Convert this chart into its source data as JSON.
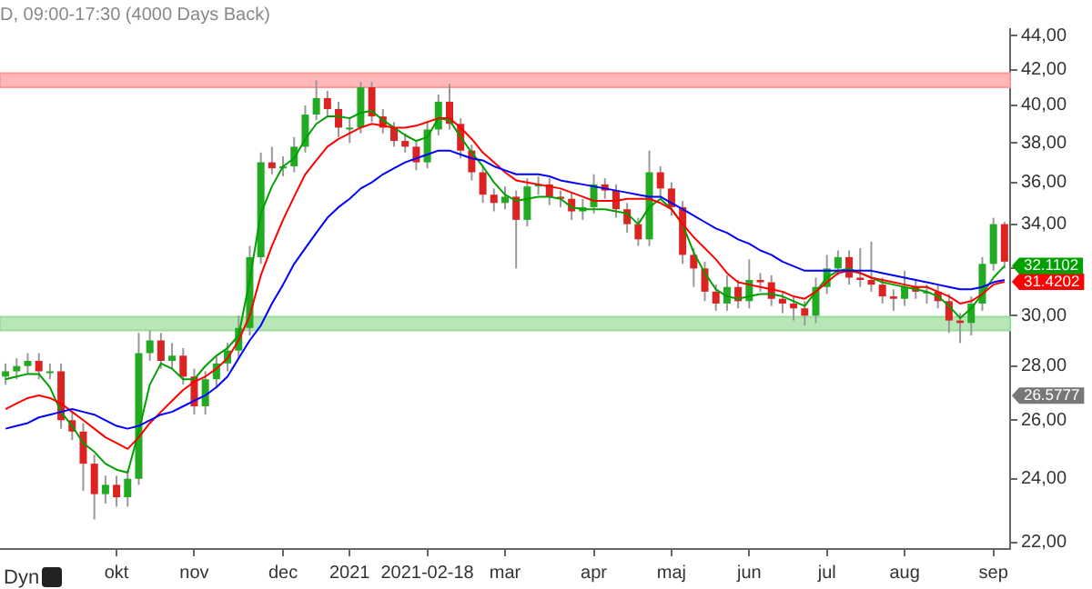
{
  "chart_data": {
    "type": "candlestick",
    "title": "D, 09:00-17:30 (4000 Days Back)",
    "categories": [
      null,
      null,
      null,
      null,
      null,
      null,
      null,
      null,
      null,
      null,
      "okt",
      null,
      null,
      null,
      null,
      null,
      null,
      "nov",
      null,
      null,
      null,
      null,
      null,
      null,
      null,
      "dec",
      null,
      null,
      null,
      null,
      null,
      "2021",
      null,
      null,
      null,
      null,
      null,
      null,
      "2021-02-18",
      null,
      null,
      null,
      null,
      null,
      null,
      "mar",
      null,
      null,
      null,
      null,
      null,
      null,
      null,
      "apr",
      null,
      null,
      null,
      null,
      null,
      null,
      "maj",
      null,
      null,
      null,
      null,
      null,
      null,
      "jun",
      null,
      null,
      null,
      null,
      null,
      null,
      "jul",
      null,
      null,
      null,
      null,
      null,
      null,
      "aug",
      null,
      null,
      null,
      null,
      null,
      null,
      null,
      "sep",
      null
    ],
    "ohlc": [
      [
        27.6,
        28.1,
        27.3,
        27.8
      ],
      [
        27.8,
        28.3,
        27.5,
        28
      ],
      [
        28,
        28.5,
        27.7,
        28.2
      ],
      [
        28.2,
        28.5,
        27.5,
        27.8
      ],
      [
        27.8,
        28.1,
        27.5,
        27.8
      ],
      [
        27.8,
        28.1,
        25.7,
        26
      ],
      [
        26,
        26.3,
        25.3,
        25.6
      ],
      [
        25.6,
        25.9,
        23.6,
        24.5
      ],
      [
        24.5,
        24.8,
        22.7,
        23.5
      ],
      [
        23.5,
        24.1,
        23.2,
        23.8
      ],
      [
        23.8,
        24.1,
        23.1,
        23.4
      ],
      [
        23.4,
        24.3,
        23.1,
        24
      ],
      [
        24,
        29.3,
        23.8,
        28.5
      ],
      [
        28.5,
        29.4,
        28.2,
        29
      ],
      [
        29,
        29.3,
        27.9,
        28.2
      ],
      [
        28.2,
        28.9,
        27.9,
        28.4
      ],
      [
        28.4,
        28.7,
        27.3,
        27.6
      ],
      [
        27.6,
        27.9,
        26.2,
        26.5
      ],
      [
        26.5,
        27.8,
        26.2,
        27.5
      ],
      [
        27.5,
        28.4,
        27.2,
        28.1
      ],
      [
        28.1,
        28.9,
        27.8,
        28.6
      ],
      [
        28.6,
        30,
        28.3,
        29.5
      ],
      [
        29.5,
        33,
        29.2,
        32.5
      ],
      [
        32.5,
        37.5,
        32.2,
        37
      ],
      [
        37,
        37.8,
        36.4,
        36.7
      ],
      [
        36.7,
        37.3,
        36.3,
        36.8
      ],
      [
        36.8,
        38.3,
        36.5,
        37.8
      ],
      [
        37.8,
        40,
        37.5,
        39.5
      ],
      [
        39.5,
        41.4,
        39.2,
        40.4
      ],
      [
        40.4,
        40.8,
        39.4,
        39.8
      ],
      [
        39.8,
        40.2,
        38.3,
        38.8
      ],
      [
        38.8,
        39.3,
        38,
        38.8
      ],
      [
        38.8,
        41.3,
        38.5,
        41
      ],
      [
        41,
        41.3,
        39.1,
        39.4
      ],
      [
        39.4,
        39.8,
        38.5,
        38.8
      ],
      [
        38.8,
        39.1,
        37.8,
        38.1
      ],
      [
        38.1,
        38.5,
        37.5,
        37.8
      ],
      [
        37.8,
        38.1,
        36.6,
        37
      ],
      [
        37,
        39.1,
        36.7,
        38.7
      ],
      [
        38.7,
        40.6,
        38.4,
        40.2
      ],
      [
        40.2,
        41.2,
        38.7,
        39
      ],
      [
        39,
        39.3,
        37.2,
        37.6
      ],
      [
        37.6,
        37.9,
        36.1,
        36.5
      ],
      [
        36.5,
        36.8,
        35,
        35.4
      ],
      [
        35.4,
        35.7,
        34.6,
        35
      ],
      [
        35,
        35.8,
        34.7,
        35.3
      ],
      [
        35.3,
        35.6,
        32,
        34.2
      ],
      [
        34.2,
        36.2,
        33.9,
        35.8
      ],
      [
        35.8,
        36.3,
        35.4,
        35.9
      ],
      [
        35.9,
        36.2,
        34.9,
        35.3
      ],
      [
        35.3,
        35.6,
        34.8,
        35.2
      ],
      [
        35.2,
        35.5,
        34.2,
        34.6
      ],
      [
        34.6,
        35.2,
        34.2,
        34.8
      ],
      [
        34.8,
        36.4,
        34.5,
        35.9
      ],
      [
        35.9,
        36.2,
        35.2,
        35.6
      ],
      [
        35.6,
        35.9,
        34.3,
        34.7
      ],
      [
        34.7,
        35,
        33.6,
        34
      ],
      [
        34,
        34.3,
        33,
        33.3
      ],
      [
        33.3,
        37.6,
        33,
        36.5
      ],
      [
        36.5,
        36.8,
        35.3,
        35.7
      ],
      [
        35.7,
        36,
        34.4,
        34.8
      ],
      [
        34.8,
        35.1,
        32.2,
        32.6
      ],
      [
        32.6,
        32.9,
        31.2,
        32
      ],
      [
        32,
        32.3,
        30.6,
        31
      ],
      [
        31,
        31.3,
        30.2,
        30.5
      ],
      [
        30.5,
        31.7,
        30.2,
        31.2
      ],
      [
        31.2,
        31.5,
        30.3,
        30.6
      ],
      [
        30.6,
        32.4,
        30.3,
        31.5
      ],
      [
        31.5,
        31.8,
        31,
        31.4
      ],
      [
        31.4,
        31.7,
        30.4,
        30.7
      ],
      [
        30.7,
        31,
        30.1,
        30.5
      ],
      [
        30.5,
        30.8,
        29.8,
        30.3
      ],
      [
        30.3,
        30.6,
        29.6,
        30
      ],
      [
        30,
        31.6,
        29.7,
        31.2
      ],
      [
        31.2,
        32.6,
        30.9,
        32
      ],
      [
        32,
        32.8,
        31.7,
        32.5
      ],
      [
        32.5,
        32.8,
        31.3,
        31.6
      ],
      [
        31.6,
        32.9,
        31.2,
        31.5
      ],
      [
        31.5,
        33.2,
        31,
        31.3
      ],
      [
        31.3,
        31.6,
        30.5,
        30.8
      ],
      [
        30.8,
        31.1,
        30.2,
        30.7
      ],
      [
        30.7,
        31.9,
        30.4,
        31.2
      ],
      [
        31.2,
        31.5,
        30.7,
        31
      ],
      [
        31,
        31.3,
        30.5,
        31
      ],
      [
        31,
        31.3,
        30.3,
        30.6
      ],
      [
        30.6,
        30.9,
        29.3,
        29.8
      ],
      [
        29.8,
        30.1,
        28.9,
        29.7
      ],
      [
        29.7,
        30.8,
        29.2,
        30.5
      ],
      [
        30.5,
        32.5,
        30.2,
        32.2
      ],
      [
        32.2,
        34.3,
        31.9,
        34
      ],
      [
        34,
        34.1,
        32,
        32.3
      ]
    ],
    "series": [
      {
        "type": "line",
        "color": "#0000ff",
        "values": [
          25.7,
          25.8,
          25.9,
          26.1,
          26.2,
          26.3,
          26.4,
          26.3,
          26.2,
          26.0,
          25.8,
          25.7,
          25.8,
          26.0,
          26.2,
          26.3,
          26.5,
          26.7,
          26.9,
          27.2,
          27.6,
          28.3,
          29.0,
          29.6,
          30.5,
          31.3,
          32.2,
          32.9,
          33.6,
          34.3,
          34.8,
          35.2,
          35.7,
          36.0,
          36.4,
          36.7,
          37.0,
          37.2,
          37.4,
          37.6,
          37.6,
          37.4,
          37.2,
          37.1,
          36.8,
          36.6,
          36.4,
          36.4,
          36.4,
          36.3,
          36.1,
          36.0,
          35.9,
          35.8,
          35.7,
          35.6,
          35.5,
          35.4,
          35.3,
          35.3,
          35.0,
          34.7,
          34.4,
          34.1,
          33.8,
          33.6,
          33.3,
          33.1,
          32.8,
          32.6,
          32.3,
          32.1,
          31.9,
          31.9,
          31.9,
          31.9,
          31.9,
          31.9,
          31.9,
          31.8,
          31.7,
          31.6,
          31.5,
          31.4,
          31.3,
          31.2,
          31.1,
          31.1,
          31.2,
          31.4,
          31.5
        ]
      },
      {
        "type": "line",
        "color": "#ff0000",
        "values": [
          26.4,
          26.6,
          26.8,
          26.9,
          26.8,
          26.6,
          26.3,
          26.0,
          25.7,
          25.4,
          25.2,
          25.0,
          25.4,
          25.9,
          26.3,
          26.7,
          27.1,
          27.4,
          27.6,
          27.9,
          28.3,
          29.0,
          30.0,
          31.7,
          33.0,
          34.2,
          35.3,
          36.4,
          37.1,
          37.8,
          38.2,
          38.5,
          38.8,
          39.0,
          38.9,
          38.8,
          38.8,
          38.9,
          39.1,
          39.3,
          39.3,
          38.8,
          38.2,
          37.5,
          37.0,
          36.5,
          36.1,
          36.0,
          35.9,
          35.8,
          35.7,
          35.5,
          35.3,
          35.1,
          35.1,
          35.1,
          35.2,
          35.2,
          35.2,
          35.0,
          34.7,
          34.0,
          33.4,
          32.9,
          32.4,
          31.8,
          31.4,
          31.3,
          31.2,
          31.1,
          31.0,
          30.8,
          30.7,
          31.0,
          31.4,
          31.8,
          31.9,
          31.8,
          31.6,
          31.5,
          31.4,
          31.3,
          31.2,
          31.2,
          31.0,
          30.8,
          30.5,
          30.6,
          30.9,
          31.3,
          31.4202
        ],
        "value_labels": [
          null,
          null,
          null,
          null,
          null,
          null,
          null,
          null,
          null,
          null,
          null,
          null,
          null,
          null,
          null,
          null,
          null,
          null,
          null,
          null,
          null,
          null,
          null,
          null,
          null,
          null,
          null,
          null,
          null,
          null,
          null,
          null,
          null,
          null,
          null,
          null,
          null,
          null,
          null,
          null,
          null,
          null,
          null,
          null,
          null,
          null,
          null,
          null,
          null,
          null,
          null,
          null,
          null,
          null,
          null,
          null,
          null,
          null,
          null,
          null,
          null,
          null,
          null,
          null,
          null,
          null,
          null,
          null,
          null,
          null,
          null,
          null,
          null,
          null,
          null,
          null,
          null,
          null,
          null,
          null,
          null,
          null,
          null,
          null,
          null,
          null,
          null,
          null,
          null,
          null,
          "31.4202"
        ]
      },
      {
        "type": "line",
        "color": "#00a000",
        "values": [
          27.5,
          27.6,
          27.7,
          27.7,
          27.2,
          26.3,
          25.8,
          25.2,
          24.9,
          24.5,
          24.3,
          24.2,
          25.6,
          27.3,
          28.1,
          27.9,
          27.5,
          27.5,
          28.0,
          28.4,
          28.7,
          29.2,
          31.5,
          34.5,
          35.8,
          36.8,
          37.2,
          38.2,
          39.0,
          39.4,
          39.4,
          39.3,
          39.6,
          39.7,
          39.2,
          38.8,
          38.4,
          38.1,
          38.3,
          39.3,
          39.2,
          38.3,
          37.5,
          36.8,
          36.0,
          35.4,
          35.1,
          35.2,
          35.3,
          35.3,
          35.2,
          34.8,
          34.7,
          34.7,
          34.7,
          34.6,
          34.5,
          34.0,
          34.8,
          35.2,
          34.7,
          34.0,
          32.7,
          31.8,
          31.1,
          30.8,
          30.7,
          30.8,
          30.9,
          30.9,
          30.8,
          30.6,
          30.4,
          31.0,
          31.6,
          31.9,
          32.0,
          31.8,
          31.6,
          31.4,
          31.3,
          31.2,
          31.1,
          31.0,
          30.8,
          30.4,
          29.9,
          30.3,
          30.9,
          31.6,
          32.1102
        ],
        "value_labels": [
          null,
          null,
          null,
          null,
          null,
          null,
          null,
          null,
          null,
          null,
          null,
          null,
          null,
          null,
          null,
          null,
          null,
          null,
          null,
          null,
          null,
          null,
          null,
          null,
          null,
          null,
          null,
          null,
          null,
          null,
          null,
          null,
          null,
          null,
          null,
          null,
          null,
          null,
          null,
          null,
          null,
          null,
          null,
          null,
          null,
          null,
          null,
          null,
          null,
          null,
          null,
          null,
          null,
          null,
          null,
          null,
          null,
          null,
          null,
          null,
          null,
          null,
          null,
          null,
          null,
          null,
          null,
          null,
          null,
          null,
          null,
          null,
          null,
          null,
          null,
          null,
          null,
          null,
          null,
          null,
          null,
          null,
          null,
          null,
          null,
          null,
          null,
          null,
          null,
          null,
          "32.1102"
        ]
      }
    ],
    "log": true,
    "ylim": [
      21.8,
      44.4
    ],
    "yticks": [
      {
        "value": 22,
        "label": "22,00"
      },
      {
        "value": 24,
        "label": "24,00"
      },
      {
        "value": 26,
        "label": "26,00"
      },
      {
        "value": 28,
        "label": "28,00"
      },
      {
        "value": 30,
        "label": "30,00"
      },
      {
        "value": 32,
        "label": null
      },
      {
        "value": 34,
        "label": "34,00"
      },
      {
        "value": 36,
        "label": "36,00"
      },
      {
        "value": 38,
        "label": "38,00"
      },
      {
        "value": 40,
        "label": "40,00"
      },
      {
        "value": 42,
        "label": "42,00"
      },
      {
        "value": 44,
        "label": "44,00"
      }
    ],
    "bands": [
      {
        "axis": "y",
        "from": 41.0,
        "to": 41.8,
        "color": "#ff9999"
      },
      {
        "axis": "y",
        "from": 29.4,
        "to": 29.95,
        "color": "#99dd99"
      }
    ],
    "annotations": [
      "Dyn",
      "26.5777"
    ],
    "legend": false,
    "grid": false
  }
}
